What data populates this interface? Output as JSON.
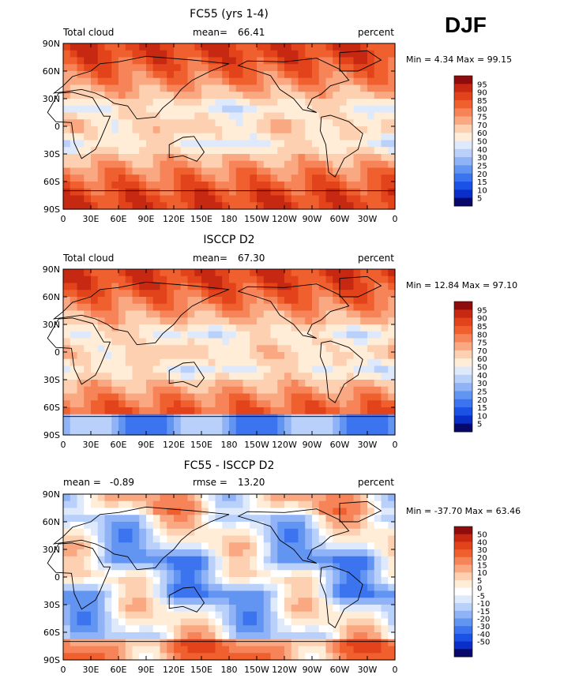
{
  "season": "DJF",
  "tick_labels": {
    "lat": [
      "90N",
      "60N",
      "30N",
      "0",
      "30S",
      "60S",
      "90S"
    ],
    "lon": [
      "0",
      "30E",
      "60E",
      "90E",
      "120E",
      "150E",
      "180",
      "150W",
      "120W",
      "90W",
      "60W",
      "30W",
      "0"
    ]
  },
  "colors": {
    "abs_scale": [
      "#08086b",
      "#0a2fc8",
      "#1a52e6",
      "#3c74f0",
      "#6294f2",
      "#8fb3f6",
      "#b8d0fa",
      "#dfe9fc",
      "#ffedd8",
      "#fcd0b0",
      "#f9a882",
      "#f68458",
      "#f0602f",
      "#e3431b",
      "#c72812",
      "#8e0c0c"
    ],
    "diff_scale": [
      "#08086b",
      "#0a2fc8",
      "#1a52e6",
      "#3c74f0",
      "#6294f2",
      "#8fb3f6",
      "#b8d0fa",
      "#dfe9fc",
      "#ffffff",
      "#ffedd8",
      "#fcd0b0",
      "#f9a882",
      "#f68458",
      "#f0602f",
      "#e3431b",
      "#c72812",
      "#8e0c0c"
    ]
  },
  "panels": [
    {
      "title": "FC55 (yrs 1-4)",
      "left_label": "Total cloud",
      "center_label": "mean=",
      "center_value": "66.41",
      "units": "percent",
      "minmax": "Min =    4.34 Max =  99.15",
      "legend_levels": [
        "95",
        "90",
        "85",
        "80",
        "75",
        "70",
        "60",
        "50",
        "40",
        "30",
        "25",
        "20",
        "15",
        "10",
        "5"
      ]
    },
    {
      "title": "ISCCP D2",
      "left_label": "Total cloud",
      "center_label": "mean=",
      "center_value": "67.30",
      "units": "percent",
      "minmax": "Min =  12.84 Max =  97.10",
      "legend_levels": [
        "95",
        "90",
        "85",
        "80",
        "75",
        "70",
        "60",
        "50",
        "40",
        "30",
        "25",
        "20",
        "15",
        "10",
        "5"
      ]
    },
    {
      "title": "FC55 - ISCCP D2",
      "left_label": "mean =",
      "left_value": "-0.89",
      "center_label": "rmse =",
      "center_value": "13.20",
      "units": "percent",
      "minmax": "Min = -37.70 Max =  63.46",
      "legend_levels": [
        "50",
        "40",
        "30",
        "20",
        "15",
        "10",
        "5",
        "0",
        "-5",
        "-10",
        "-15",
        "-20",
        "-30",
        "-40",
        "-50"
      ]
    }
  ]
}
